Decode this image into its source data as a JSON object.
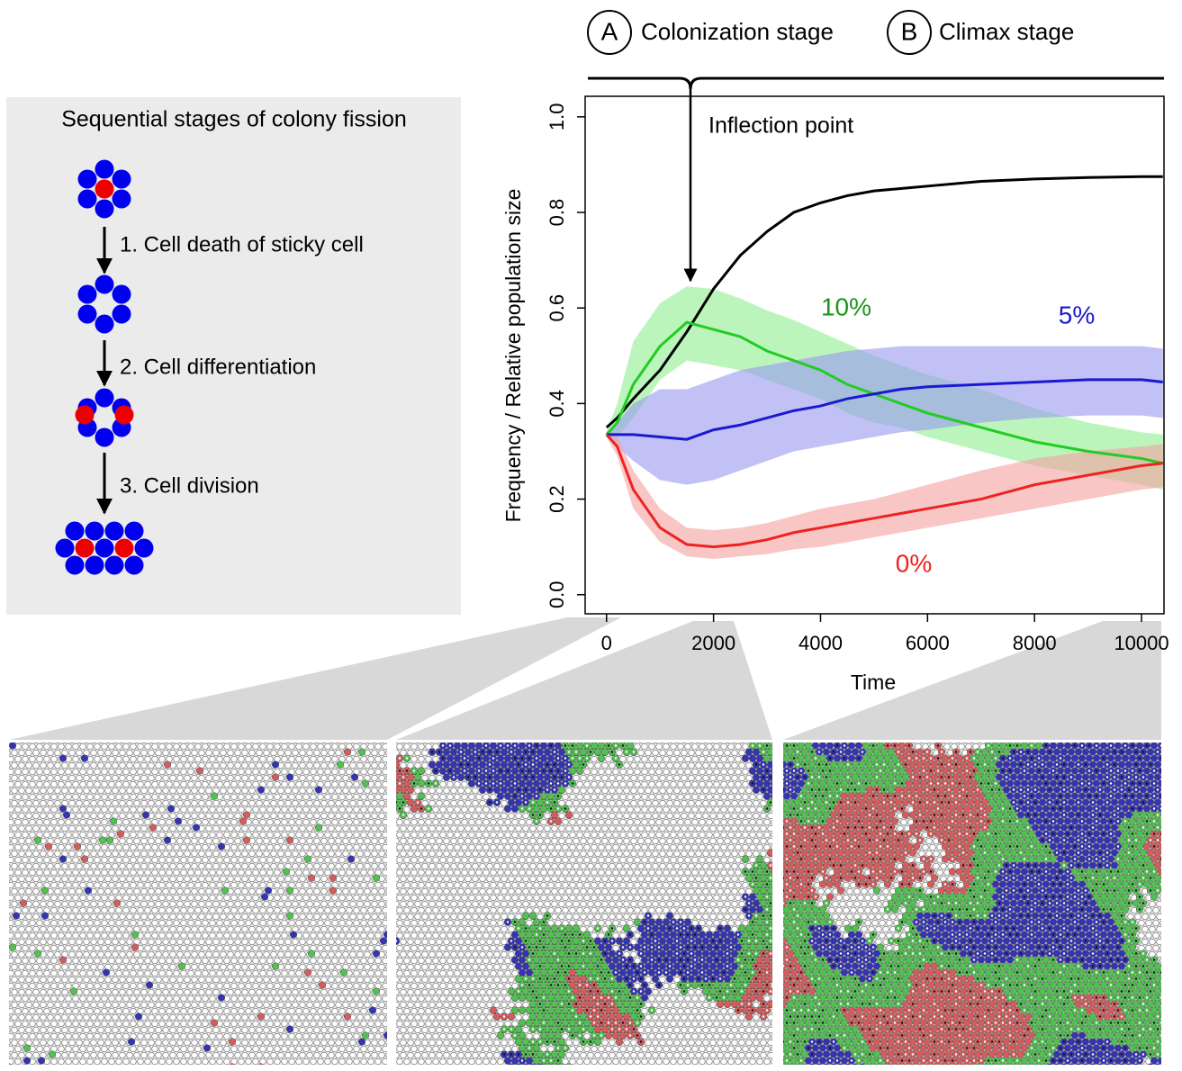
{
  "stages": [
    {
      "letter": "A",
      "label": "Colonization stage"
    },
    {
      "letter": "B",
      "label": "Climax stage"
    }
  ],
  "diagram": {
    "title": "Sequential stages of colony fission",
    "steps": [
      "1. Cell death of sticky cell",
      "2. Cell differentiation",
      "3. Cell division"
    ]
  },
  "chart_data": {
    "type": "line",
    "annotation": "Inflection point",
    "x_label": "Time",
    "y_label": "Frequency / Relative population size",
    "x": [
      0,
      200,
      500,
      1000,
      1500,
      2000,
      2500,
      3000,
      3500,
      4000,
      4500,
      5000,
      5500,
      6000,
      7000,
      8000,
      9000,
      10000,
      10400
    ],
    "series": [
      {
        "color": "#000000",
        "values": [
          0.35,
          0.37,
          0.41,
          0.47,
          0.55,
          0.64,
          0.71,
          0.76,
          0.8,
          0.82,
          0.835,
          0.845,
          0.85,
          0.855,
          0.865,
          0.87,
          0.873,
          0.875,
          0.875
        ]
      },
      {
        "name": "10%",
        "color": "#22cc22",
        "band_color": "#90ee90",
        "label_color": "#1a961a",
        "values": [
          0.335,
          0.36,
          0.44,
          0.52,
          0.57,
          0.555,
          0.54,
          0.51,
          0.49,
          0.47,
          0.44,
          0.42,
          0.4,
          0.38,
          0.35,
          0.32,
          0.3,
          0.285,
          0.275
        ],
        "upper": [
          0.34,
          0.4,
          0.53,
          0.61,
          0.645,
          0.64,
          0.62,
          0.595,
          0.575,
          0.55,
          0.525,
          0.5,
          0.48,
          0.46,
          0.43,
          0.39,
          0.36,
          0.34,
          0.335
        ],
        "lower": [
          0.33,
          0.33,
          0.37,
          0.45,
          0.49,
          0.48,
          0.47,
          0.45,
          0.43,
          0.41,
          0.38,
          0.36,
          0.35,
          0.33,
          0.3,
          0.27,
          0.25,
          0.23,
          0.22
        ]
      },
      {
        "name": "5%",
        "color": "#1a1ad0",
        "band_color": "#9898f0",
        "label_color": "#1a1ad0",
        "values": [
          0.335,
          0.335,
          0.335,
          0.33,
          0.325,
          0.345,
          0.355,
          0.37,
          0.385,
          0.395,
          0.41,
          0.42,
          0.43,
          0.435,
          0.44,
          0.445,
          0.45,
          0.45,
          0.445
        ],
        "upper": [
          0.34,
          0.36,
          0.4,
          0.43,
          0.43,
          0.45,
          0.47,
          0.48,
          0.49,
          0.5,
          0.51,
          0.515,
          0.52,
          0.52,
          0.52,
          0.52,
          0.52,
          0.52,
          0.515
        ],
        "lower": [
          0.33,
          0.31,
          0.28,
          0.24,
          0.23,
          0.24,
          0.26,
          0.28,
          0.3,
          0.31,
          0.32,
          0.33,
          0.34,
          0.345,
          0.36,
          0.37,
          0.375,
          0.375,
          0.37
        ]
      },
      {
        "name": "0%",
        "color": "#ee2222",
        "band_color": "#f5a0a0",
        "label_color": "#ee2222",
        "values": [
          0.335,
          0.31,
          0.22,
          0.14,
          0.105,
          0.1,
          0.105,
          0.115,
          0.13,
          0.14,
          0.15,
          0.16,
          0.17,
          0.18,
          0.2,
          0.23,
          0.25,
          0.27,
          0.275
        ],
        "upper": [
          0.34,
          0.33,
          0.26,
          0.18,
          0.14,
          0.135,
          0.14,
          0.15,
          0.165,
          0.18,
          0.19,
          0.2,
          0.215,
          0.23,
          0.26,
          0.285,
          0.3,
          0.31,
          0.315
        ],
        "lower": [
          0.33,
          0.29,
          0.18,
          0.11,
          0.08,
          0.075,
          0.08,
          0.085,
          0.095,
          0.1,
          0.11,
          0.12,
          0.13,
          0.14,
          0.16,
          0.18,
          0.2,
          0.22,
          0.225
        ]
      }
    ],
    "xlim": [
      -400,
      10420
    ],
    "ylim": [
      -0.04,
      1.043
    ],
    "xticks": [
      0,
      2000,
      4000,
      6000,
      8000,
      10000
    ],
    "yticks": [
      {
        "value": 0,
        "label": "0.0"
      },
      0.2,
      0.4,
      0.6,
      0.8,
      {
        "value": 1,
        "label": "1.0"
      }
    ]
  }
}
